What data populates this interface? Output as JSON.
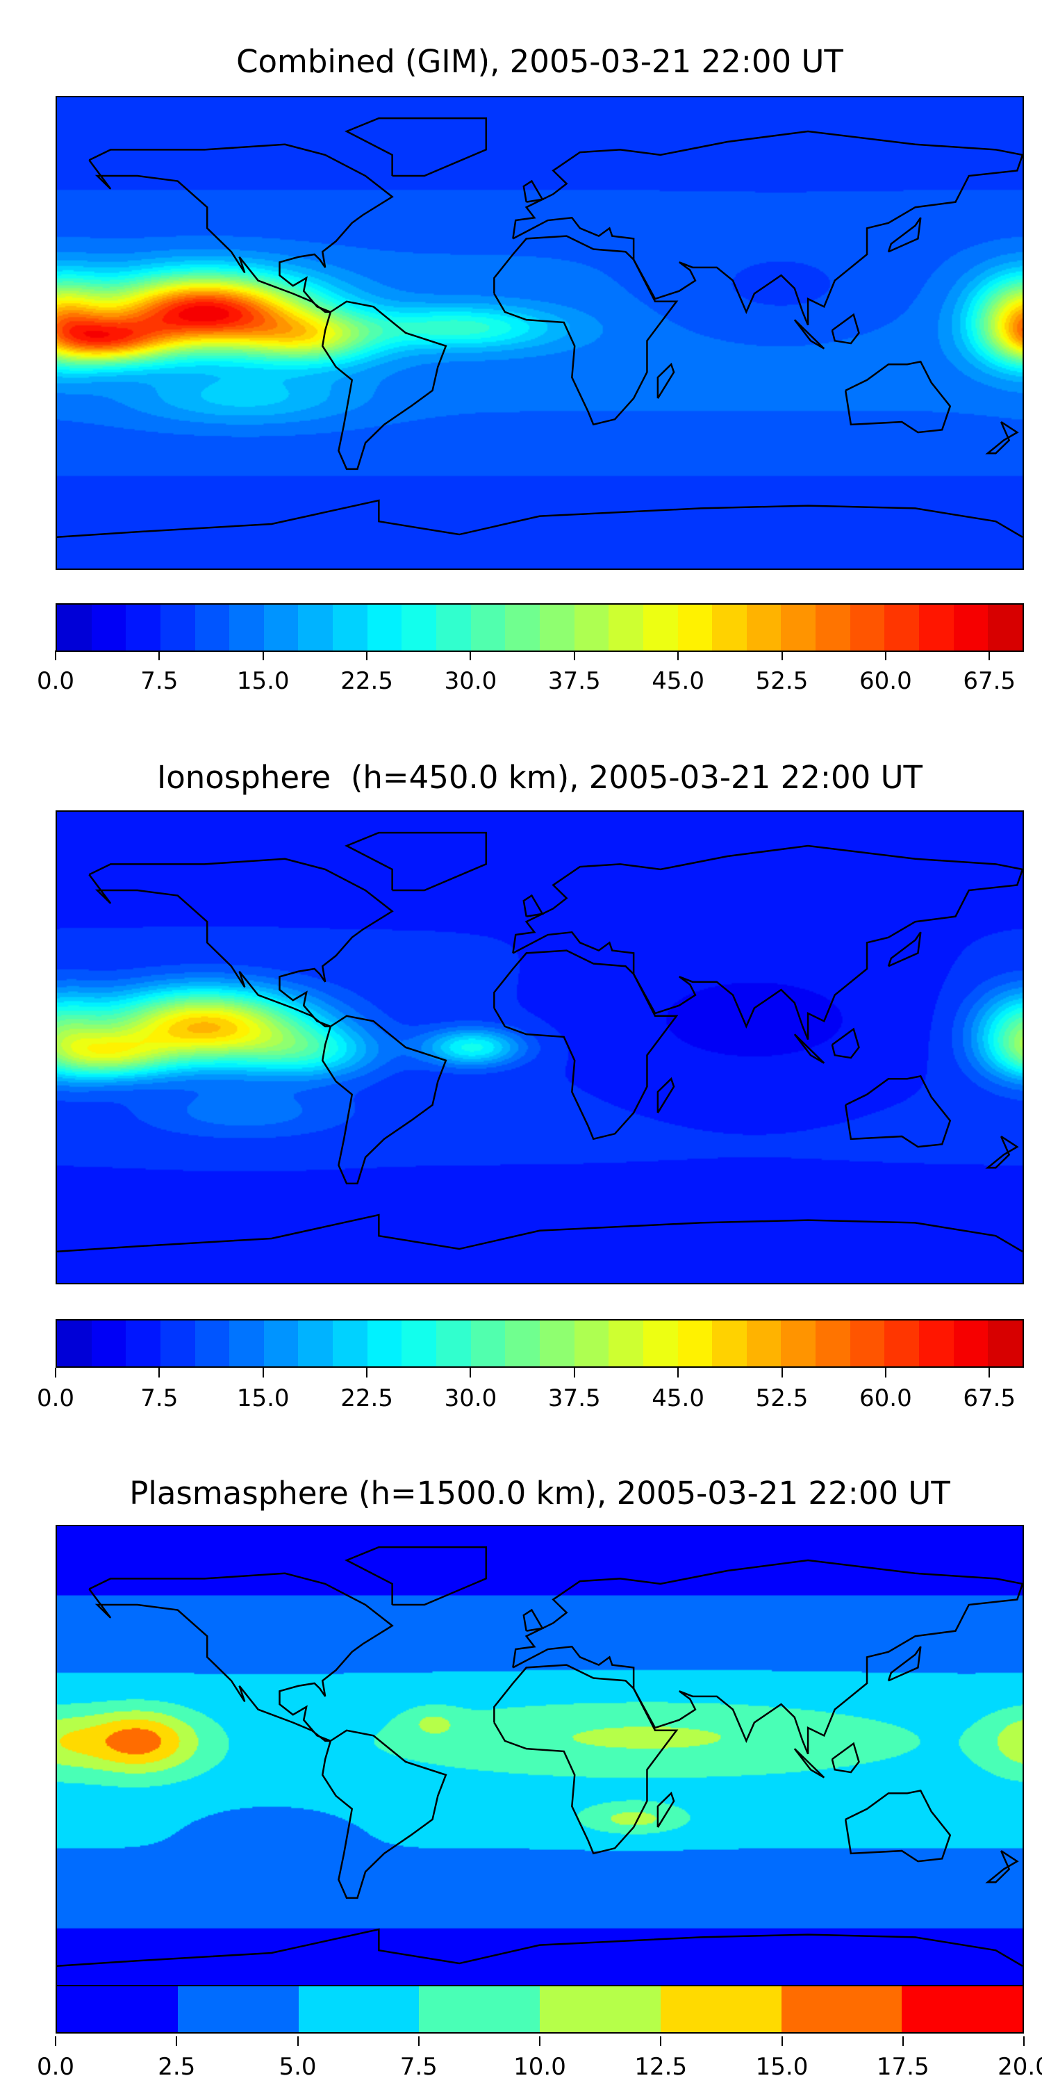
{
  "chart_data": [
    {
      "type": "heatmap",
      "title": "Combined (GIM), 2005-03-21 22:00 UT",
      "xlim": [
        -180,
        180
      ],
      "ylim": [
        -90,
        90
      ],
      "colormap": "jet",
      "levels": {
        "min": 0,
        "max": 70,
        "step": 2.5
      },
      "colorbar_ticks": [
        "0.0",
        "7.5",
        "15.0",
        "22.5",
        "30.0",
        "37.5",
        "45.0",
        "52.5",
        "60.0",
        "67.5"
      ],
      "colorbar_tick_values": [
        0,
        7.5,
        15,
        22.5,
        30,
        37.5,
        45,
        52.5,
        60,
        67.5
      ],
      "base": {
        "equator": 14,
        "pole": 8
      },
      "features": [
        {
          "lon": -125,
          "lat": 8,
          "amp": 52,
          "slon": 38,
          "slat": 14
        },
        {
          "lon": -160,
          "lat": -3,
          "amp": 30,
          "slon": 22,
          "slat": 9
        },
        {
          "lon": -85,
          "lat": -2,
          "amp": 22,
          "slon": 25,
          "slat": 10
        },
        {
          "lon": -30,
          "lat": 2,
          "amp": 15,
          "slon": 35,
          "slat": 8
        },
        {
          "lon": 180,
          "lat": 5,
          "amp": 30,
          "slon": 18,
          "slat": 16
        },
        {
          "lon": -110,
          "lat": -25,
          "amp": 8,
          "slon": 40,
          "slat": 10
        },
        {
          "lon": 90,
          "lat": 15,
          "amp": -4,
          "slon": 50,
          "slat": 20
        }
      ]
    },
    {
      "type": "heatmap",
      "title": "Ionosphere  (h=450.0 km), 2005-03-21 22:00 UT",
      "xlim": [
        -180,
        180
      ],
      "ylim": [
        -90,
        90
      ],
      "colormap": "jet",
      "levels": {
        "min": 0,
        "max": 70,
        "step": 2.5
      },
      "colorbar_ticks": [
        "0.0",
        "7.5",
        "15.0",
        "22.5",
        "30.0",
        "37.5",
        "45.0",
        "52.5",
        "60.0",
        "67.5"
      ],
      "colorbar_tick_values": [
        0,
        7.5,
        15,
        22.5,
        30,
        37.5,
        45,
        52.5,
        60,
        67.5
      ],
      "base": {
        "equator": 8,
        "pole": 7
      },
      "features": [
        {
          "lon": -125,
          "lat": 8,
          "amp": 42,
          "slon": 38,
          "slat": 14
        },
        {
          "lon": -160,
          "lat": -3,
          "amp": 22,
          "slon": 22,
          "slat": 9
        },
        {
          "lon": -85,
          "lat": -2,
          "amp": 14,
          "slon": 25,
          "slat": 10
        },
        {
          "lon": -25,
          "lat": 0,
          "amp": 18,
          "slon": 18,
          "slat": 7
        },
        {
          "lon": 180,
          "lat": 5,
          "amp": 20,
          "slon": 18,
          "slat": 16
        },
        {
          "lon": -110,
          "lat": -25,
          "amp": 6,
          "slon": 40,
          "slat": 10
        },
        {
          "lon": 80,
          "lat": 10,
          "amp": -4,
          "slon": 60,
          "slat": 25
        }
      ]
    },
    {
      "type": "heatmap",
      "title": "Plasmasphere (h=1500.0 km), 2005-03-21 22:00 UT",
      "xlim": [
        -180,
        180
      ],
      "ylim": [
        -90,
        90
      ],
      "colormap": "jet",
      "levels": {
        "min": 0,
        "max": 20,
        "step": 2.5
      },
      "colorbar_ticks": [
        "0.0",
        "2.5",
        "5.0",
        "7.5",
        "10.0",
        "12.5",
        "15.0",
        "17.5",
        "20.0"
      ],
      "colorbar_tick_values": [
        0,
        2.5,
        5,
        7.5,
        10,
        12.5,
        15,
        17.5,
        20
      ],
      "base": {
        "equator": 6.5,
        "pole": 1.5
      },
      "features": [
        {
          "lon": -150,
          "lat": 8,
          "amp": 10,
          "slon": 22,
          "slat": 12
        },
        {
          "lon": 40,
          "lat": 10,
          "amp": 4,
          "slon": 90,
          "slat": 14
        },
        {
          "lon": 35,
          "lat": -22,
          "amp": 5,
          "slon": 20,
          "slat": 6
        },
        {
          "lon": -40,
          "lat": 15,
          "amp": 3,
          "slon": 10,
          "slat": 6
        },
        {
          "lon": 180,
          "lat": 8,
          "amp": 4,
          "slon": 15,
          "slat": 12
        },
        {
          "lon": -100,
          "lat": -25,
          "amp": -2,
          "slon": 30,
          "slat": 10
        }
      ]
    }
  ]
}
